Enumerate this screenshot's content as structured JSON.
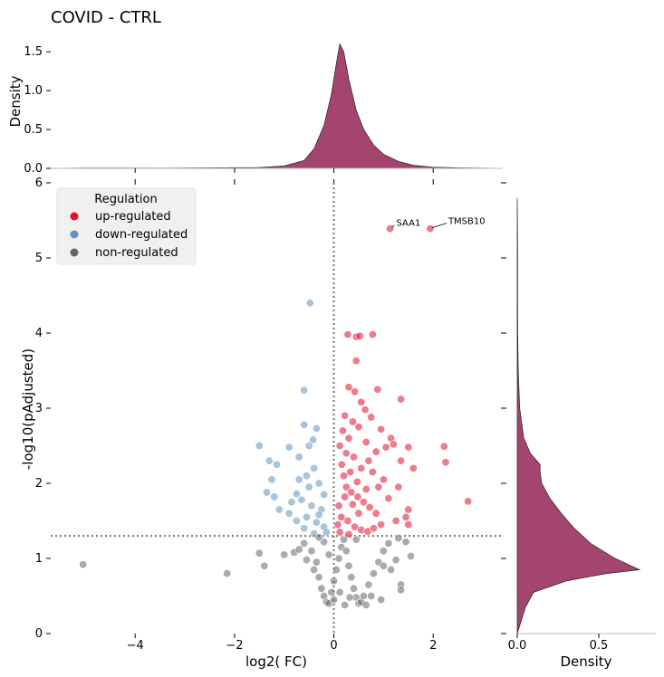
{
  "chart_data": {
    "type": "scatter",
    "title": "COVID - CTRL",
    "xlabel": "log2( FC)",
    "ylabel": "-log10(pAdjusted)",
    "xlim": [
      -5.7,
      3.4
    ],
    "ylim": [
      0,
      6
    ],
    "x_ticks": [
      "−4",
      "−2",
      "0",
      "2"
    ],
    "y_ticks": [
      "0",
      "1",
      "2",
      "3",
      "4",
      "5",
      "6"
    ],
    "threshold_x": 0,
    "threshold_y": 1.3,
    "legend": {
      "title": "Regulation",
      "placement": "top-left",
      "entries": [
        {
          "label": "up-regulated",
          "color": "#e0102e"
        },
        {
          "label": "down-regulated",
          "color": "#5e93bf"
        },
        {
          "label": "non-regulated",
          "color": "#666666"
        }
      ]
    },
    "annotations": [
      {
        "label": "SAA1",
        "x": 1.13,
        "y": 5.39
      },
      {
        "label": "TMSB10",
        "x": 1.94,
        "y": 5.39
      }
    ],
    "series": [
      {
        "name": "up-regulated",
        "color": "#e0102e",
        "points": [
          [
            1.13,
            5.39
          ],
          [
            1.94,
            5.39
          ],
          [
            0.28,
            3.98
          ],
          [
            0.45,
            3.95
          ],
          [
            0.52,
            3.96
          ],
          [
            0.78,
            3.98
          ],
          [
            0.45,
            3.63
          ],
          [
            1.35,
            3.12
          ],
          [
            0.88,
            3.25
          ],
          [
            0.3,
            3.28
          ],
          [
            0.42,
            3.22
          ],
          [
            0.55,
            3.08
          ],
          [
            0.63,
            2.98
          ],
          [
            0.22,
            2.9
          ],
          [
            0.75,
            2.88
          ],
          [
            0.38,
            2.82
          ],
          [
            0.5,
            2.75
          ],
          [
            0.18,
            2.7
          ],
          [
            0.95,
            2.72
          ],
          [
            1.15,
            2.6
          ],
          [
            1.2,
            2.52
          ],
          [
            1.05,
            2.48
          ],
          [
            1.5,
            2.48
          ],
          [
            2.22,
            2.49
          ],
          [
            1.35,
            2.3
          ],
          [
            1.6,
            2.2
          ],
          [
            2.25,
            2.28
          ],
          [
            0.65,
            2.55
          ],
          [
            0.85,
            2.42
          ],
          [
            0.3,
            2.6
          ],
          [
            0.4,
            2.35
          ],
          [
            0.12,
            2.5
          ],
          [
            0.55,
            2.2
          ],
          [
            0.78,
            2.15
          ],
          [
            1.0,
            2.05
          ],
          [
            1.1,
            1.8
          ],
          [
            1.5,
            1.65
          ],
          [
            1.45,
            1.55
          ],
          [
            1.5,
            1.45
          ],
          [
            0.95,
            1.45
          ],
          [
            0.2,
            2.1
          ],
          [
            0.25,
            1.95
          ],
          [
            0.35,
            1.88
          ],
          [
            0.48,
            1.82
          ],
          [
            0.6,
            1.75
          ],
          [
            0.72,
            1.68
          ],
          [
            0.85,
            1.6
          ],
          [
            0.1,
            1.7
          ],
          [
            0.15,
            1.55
          ],
          [
            0.28,
            1.5
          ],
          [
            0.42,
            1.42
          ],
          [
            0.55,
            1.38
          ],
          [
            0.68,
            1.36
          ],
          [
            0.8,
            1.4
          ],
          [
            0.3,
            1.32
          ],
          [
            0.12,
            1.35
          ],
          [
            0.5,
            1.6
          ],
          [
            0.38,
            1.72
          ],
          [
            0.22,
            1.82
          ],
          [
            0.65,
            1.92
          ],
          [
            0.9,
            1.95
          ],
          [
            0.16,
            2.25
          ],
          [
            0.33,
            2.15
          ],
          [
            0.47,
            2.02
          ],
          [
            2.7,
            1.76
          ],
          [
            0.08,
            1.45
          ],
          [
            1.25,
            1.5
          ],
          [
            1.3,
            1.95
          ],
          [
            0.7,
            2.3
          ],
          [
            0.25,
            2.4
          ]
        ]
      },
      {
        "name": "down-regulated",
        "color": "#5e93bf",
        "points": [
          [
            -0.48,
            4.4
          ],
          [
            -0.6,
            3.24
          ],
          [
            -0.6,
            2.78
          ],
          [
            -0.35,
            2.73
          ],
          [
            -0.42,
            2.58
          ],
          [
            -0.5,
            2.5
          ],
          [
            -1.5,
            2.5
          ],
          [
            -0.9,
            2.48
          ],
          [
            -1.3,
            2.3
          ],
          [
            -1.15,
            2.25
          ],
          [
            -0.7,
            2.35
          ],
          [
            -0.4,
            2.2
          ],
          [
            -1.25,
            2.05
          ],
          [
            -0.55,
            2.1
          ],
          [
            -0.3,
            2.0
          ],
          [
            -1.35,
            1.88
          ],
          [
            -0.75,
            1.86
          ],
          [
            -1.2,
            1.82
          ],
          [
            -0.65,
            1.78
          ],
          [
            -0.45,
            1.7
          ],
          [
            -0.25,
            1.65
          ],
          [
            -0.85,
            1.75
          ],
          [
            -1.1,
            1.65
          ],
          [
            -0.55,
            1.55
          ],
          [
            -0.35,
            1.48
          ],
          [
            -0.2,
            1.42
          ],
          [
            -0.75,
            1.5
          ],
          [
            -0.15,
            1.35
          ],
          [
            -0.4,
            1.33
          ],
          [
            -0.6,
            1.4
          ],
          [
            -0.5,
            1.95
          ],
          [
            -0.2,
            1.85
          ],
          [
            -0.3,
            1.58
          ],
          [
            -0.7,
            2.05
          ],
          [
            -0.9,
            1.6
          ]
        ]
      },
      {
        "name": "non-regulated",
        "color": "#666666",
        "points": [
          [
            -5.05,
            0.92
          ],
          [
            -2.15,
            0.8
          ],
          [
            -1.5,
            1.07
          ],
          [
            -1.4,
            0.9
          ],
          [
            -1.0,
            1.05
          ],
          [
            -0.8,
            1.08
          ],
          [
            -0.6,
            1.2
          ],
          [
            -0.45,
            1.1
          ],
          [
            -0.35,
            0.95
          ],
          [
            -0.3,
            0.75
          ],
          [
            -0.25,
            0.6
          ],
          [
            -0.2,
            0.5
          ],
          [
            -0.15,
            0.42
          ],
          [
            -0.1,
            0.4
          ],
          [
            -0.05,
            0.55
          ],
          [
            0.0,
            0.7
          ],
          [
            0.05,
            0.85
          ],
          [
            0.1,
            1.0
          ],
          [
            0.15,
            1.15
          ],
          [
            0.2,
            1.25
          ],
          [
            0.25,
            1.1
          ],
          [
            0.3,
            0.9
          ],
          [
            0.35,
            0.75
          ],
          [
            0.4,
            0.6
          ],
          [
            0.45,
            0.48
          ],
          [
            0.5,
            0.4
          ],
          [
            0.55,
            0.42
          ],
          [
            0.6,
            0.5
          ],
          [
            0.7,
            0.65
          ],
          [
            0.8,
            0.8
          ],
          [
            0.9,
            0.95
          ],
          [
            1.0,
            1.1
          ],
          [
            1.1,
            1.2
          ],
          [
            1.3,
            1.27
          ],
          [
            1.45,
            1.22
          ],
          [
            1.55,
            1.03
          ],
          [
            1.35,
            0.65
          ],
          [
            1.35,
            0.58
          ],
          [
            1.0,
            0.9
          ],
          [
            0.75,
            0.5
          ],
          [
            0.65,
            0.38
          ],
          [
            -0.4,
            0.85
          ],
          [
            -0.55,
            0.98
          ],
          [
            -0.7,
            1.12
          ],
          [
            -0.2,
            1.22
          ],
          [
            -0.1,
            1.05
          ],
          [
            0.0,
            0.45
          ],
          [
            0.12,
            0.55
          ],
          [
            0.22,
            0.38
          ],
          [
            0.32,
            0.48
          ],
          [
            -0.3,
            1.28
          ],
          [
            0.45,
            1.25
          ],
          [
            1.15,
            0.85
          ],
          [
            1.25,
            0.98
          ],
          [
            0.95,
            0.45
          ]
        ]
      }
    ],
    "marginal_top": {
      "ylabel": "Density",
      "y_ticks": [
        "0.0",
        "0.5",
        "1.0",
        "1.5"
      ],
      "ylim": [
        0,
        1.7
      ],
      "fill_color": "#a3456f",
      "curve": [
        [
          -5.7,
          0.0
        ],
        [
          -5.0,
          0.005
        ],
        [
          -3.5,
          0.003
        ],
        [
          -2.2,
          0.008
        ],
        [
          -1.5,
          0.01
        ],
        [
          -1.0,
          0.03
        ],
        [
          -0.6,
          0.1
        ],
        [
          -0.4,
          0.25
        ],
        [
          -0.2,
          0.55
        ],
        [
          -0.05,
          0.95
        ],
        [
          0.05,
          1.35
        ],
        [
          0.12,
          1.6
        ],
        [
          0.2,
          1.5
        ],
        [
          0.3,
          1.15
        ],
        [
          0.45,
          0.75
        ],
        [
          0.6,
          0.5
        ],
        [
          0.8,
          0.3
        ],
        [
          1.0,
          0.18
        ],
        [
          1.3,
          0.09
        ],
        [
          1.6,
          0.04
        ],
        [
          2.0,
          0.015
        ],
        [
          2.6,
          0.006
        ],
        [
          3.4,
          0.0
        ]
      ]
    },
    "marginal_right": {
      "xlabel": "Density",
      "x_ticks": [
        "0.0",
        "0.5"
      ],
      "xlim": [
        0,
        0.85
      ],
      "fill_color": "#a3456f",
      "curve": [
        [
          0.0,
          0.0
        ],
        [
          0.35,
          0.05
        ],
        [
          0.55,
          0.1
        ],
        [
          0.7,
          0.3
        ],
        [
          0.8,
          0.55
        ],
        [
          0.85,
          0.75
        ],
        [
          1.0,
          0.6
        ],
        [
          1.2,
          0.45
        ],
        [
          1.4,
          0.35
        ],
        [
          1.6,
          0.27
        ],
        [
          1.8,
          0.2
        ],
        [
          2.0,
          0.15
        ],
        [
          2.15,
          0.14
        ],
        [
          2.25,
          0.14
        ],
        [
          2.4,
          0.08
        ],
        [
          2.6,
          0.04
        ],
        [
          3.0,
          0.015
        ],
        [
          3.5,
          0.006
        ],
        [
          4.0,
          0.003
        ],
        [
          4.5,
          0.002
        ],
        [
          5.0,
          0.002
        ],
        [
          5.5,
          0.001
        ],
        [
          5.8,
          0.0
        ]
      ]
    }
  }
}
